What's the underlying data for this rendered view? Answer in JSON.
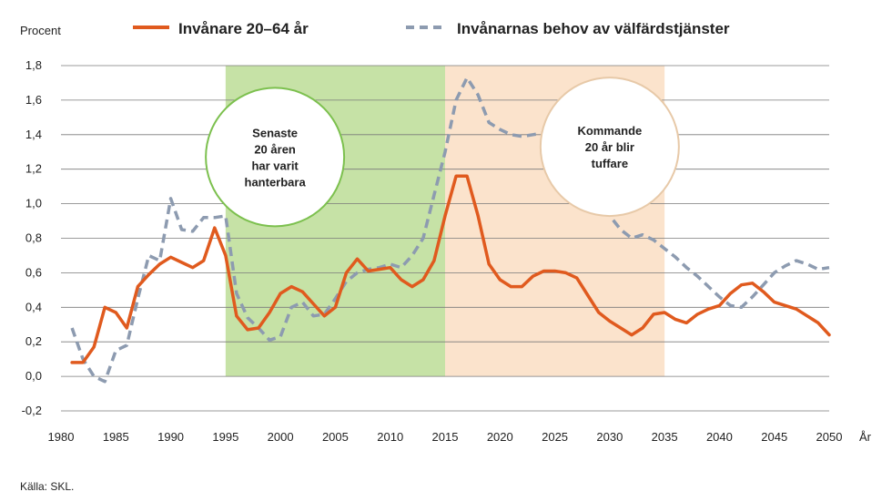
{
  "chart_data": {
    "type": "line",
    "ylabel": "Procent",
    "xlabel": "År",
    "ylim": [
      -0.2,
      1.8
    ],
    "xlim": [
      1980,
      2050
    ],
    "x_ticks": [
      1980,
      1985,
      1990,
      1995,
      2000,
      2005,
      2010,
      2015,
      2020,
      2025,
      2030,
      2035,
      2040,
      2045,
      2050
    ],
    "y_ticks": [
      "-0,2",
      "0,0",
      "0,2",
      "0,4",
      "0,6",
      "0,8",
      "1,0",
      "1,2",
      "1,4",
      "1,6",
      "1,8"
    ],
    "grid": true,
    "legend": "top",
    "colors": {
      "series1": "#e05a1e",
      "series2": "#8d9bb0",
      "green_band": "#c6e2a6",
      "orange_band": "#fbe3cc",
      "bubble_green": "#7cc04e",
      "bubble_orange": "#e7c9a8"
    },
    "bands": [
      {
        "from": 1995,
        "to": 2015,
        "color": "green"
      },
      {
        "from": 2015,
        "to": 2035,
        "color": "orange"
      }
    ],
    "annotations": [
      {
        "lines": [
          "Senaste",
          "20 åren",
          "har varit",
          "hanterbara"
        ],
        "x": 1999.5,
        "y": 1.27
      },
      {
        "lines": [
          "Kommande",
          "20 år blir",
          "tuffare"
        ],
        "x": 2030,
        "y": 1.33
      }
    ],
    "series": [
      {
        "name": "Invånare 20–64 år",
        "style": "solid",
        "x": [
          1981,
          1982,
          1983,
          1984,
          1985,
          1986,
          1987,
          1988,
          1989,
          1990,
          1991,
          1992,
          1993,
          1994,
          1995,
          1996,
          1997,
          1998,
          1999,
          2000,
          2001,
          2002,
          2003,
          2004,
          2005,
          2006,
          2007,
          2008,
          2009,
          2010,
          2011,
          2012,
          2013,
          2014,
          2015,
          2016,
          2017,
          2018,
          2019,
          2020,
          2021,
          2022,
          2023,
          2024,
          2025,
          2026,
          2027,
          2028,
          2029,
          2030,
          2031,
          2032,
          2033,
          2034,
          2035,
          2036,
          2037,
          2038,
          2039,
          2040,
          2041,
          2042,
          2043,
          2044,
          2045,
          2046,
          2047,
          2048,
          2049,
          2050
        ],
        "values": [
          0.08,
          0.08,
          0.17,
          0.4,
          0.37,
          0.28,
          0.52,
          0.59,
          0.65,
          0.69,
          0.66,
          0.63,
          0.67,
          0.86,
          0.7,
          0.35,
          0.27,
          0.28,
          0.37,
          0.48,
          0.52,
          0.49,
          0.42,
          0.35,
          0.4,
          0.6,
          0.68,
          0.61,
          0.62,
          0.63,
          0.56,
          0.52,
          0.56,
          0.67,
          0.93,
          1.16,
          1.16,
          0.93,
          0.65,
          0.56,
          0.52,
          0.52,
          0.58,
          0.61,
          0.61,
          0.6,
          0.57,
          0.47,
          0.37,
          0.32,
          0.28,
          0.24,
          0.28,
          0.36,
          0.37,
          0.33,
          0.31,
          0.36,
          0.39,
          0.41,
          0.48,
          0.53,
          0.54,
          0.49,
          0.43,
          0.41,
          0.39,
          0.35,
          0.31,
          0.24
        ]
      },
      {
        "name": "Invånarnas behov av välfärdstjänster",
        "style": "dashed",
        "x": [
          1981,
          1982,
          1983,
          1984,
          1985,
          1986,
          1987,
          1988,
          1989,
          1990,
          1991,
          1992,
          1993,
          1994,
          1995,
          1996,
          1997,
          1998,
          1999,
          2000,
          2001,
          2002,
          2003,
          2004,
          2005,
          2006,
          2007,
          2008,
          2009,
          2010,
          2011,
          2012,
          2013,
          2014,
          2015,
          2016,
          2017,
          2018,
          2019,
          2020,
          2021,
          2022,
          2023,
          2024,
          2025,
          2026,
          2027,
          2028,
          2029,
          2030,
          2031,
          2032,
          2033,
          2034,
          2035,
          2036,
          2037,
          2038,
          2039,
          2040,
          2041,
          2042,
          2043,
          2044,
          2045,
          2046,
          2047,
          2048,
          2049,
          2050
        ],
        "values": [
          0.28,
          0.1,
          0.0,
          -0.03,
          0.15,
          0.18,
          0.45,
          0.7,
          0.67,
          1.03,
          0.85,
          0.84,
          0.92,
          0.92,
          0.93,
          0.48,
          0.34,
          0.28,
          0.21,
          0.23,
          0.4,
          0.43,
          0.35,
          0.36,
          0.45,
          0.55,
          0.6,
          0.62,
          0.63,
          0.65,
          0.63,
          0.7,
          0.8,
          1.05,
          1.3,
          1.6,
          1.73,
          1.63,
          1.47,
          1.43,
          1.4,
          1.39,
          1.4,
          1.41,
          1.39,
          1.33,
          1.23,
          1.13,
          1.03,
          0.93,
          0.85,
          0.8,
          0.82,
          0.79,
          0.74,
          0.69,
          0.63,
          0.58,
          0.52,
          0.46,
          0.41,
          0.4,
          0.46,
          0.53,
          0.6,
          0.64,
          0.67,
          0.65,
          0.62,
          0.63
        ]
      }
    ],
    "source": "Källa: SKL."
  }
}
